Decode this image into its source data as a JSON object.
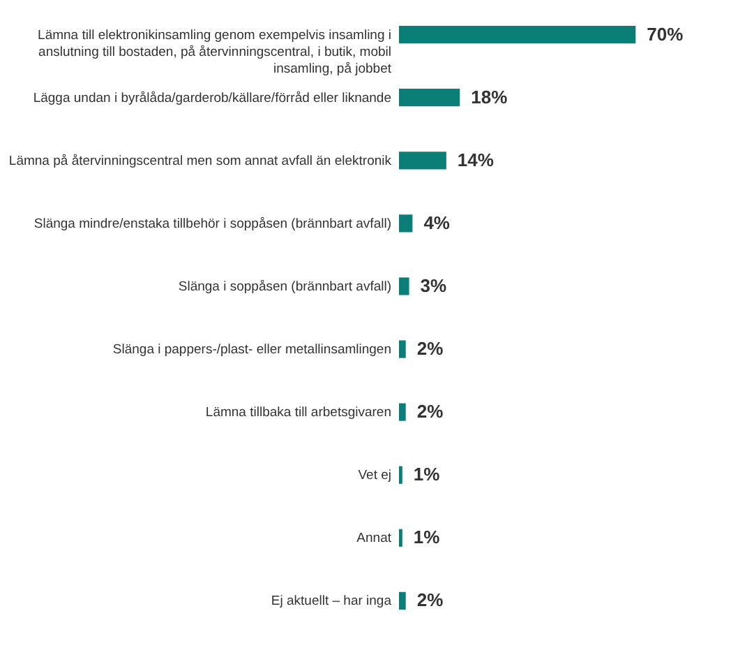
{
  "chart_data": {
    "type": "bar",
    "orientation": "horizontal",
    "color": "#0b7f77",
    "value_labels": [
      "70%",
      "18%",
      "14%",
      "4%",
      "3%",
      "2%",
      "2%",
      "1%",
      "1%",
      "2%"
    ],
    "categories": [
      "Lämna till elektronikinsamling genom exempelvis insamling i anslutning till bostaden, på återvinningscentral, i butik, mobil insamling, på jobbet",
      "Lägga undan i byrålåda/garderob/källare/förråd eller liknande",
      "Lämna på återvinningscentral men som annat avfall än elektronik",
      "Slänga mindre/enstaka tillbehör i soppåsen (brännbart avfall)",
      "Slänga i soppåsen (brännbart avfall)",
      "Slänga i pappers-/plast- eller metallinsamlingen",
      "Lämna tillbaka till arbetsgivaren",
      "Vet ej",
      "Annat",
      "Ej aktuellt – har inga"
    ],
    "values": [
      70,
      18,
      14,
      4,
      3,
      2,
      2,
      1,
      1,
      2
    ]
  }
}
